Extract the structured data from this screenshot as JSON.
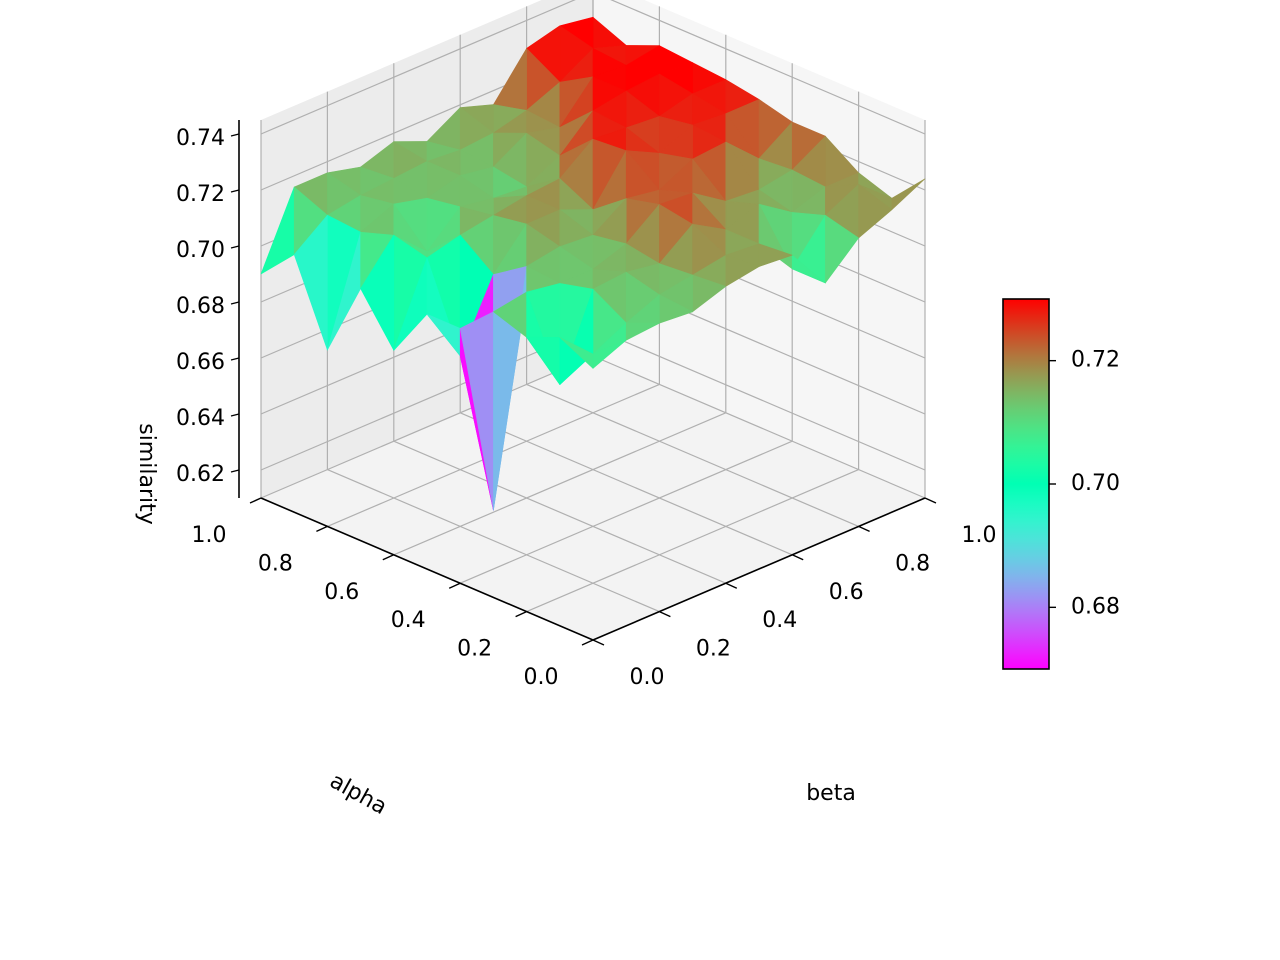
{
  "chart_data": {
    "type": "surface3d",
    "title": "",
    "xlabel": "alpha",
    "ylabel": "beta",
    "zlabel": "similarity",
    "x": [
      0.0,
      0.1,
      0.2,
      0.3,
      0.4,
      0.5,
      0.6,
      0.7,
      0.8,
      0.9,
      1.0
    ],
    "y": [
      0.0,
      0.1,
      0.2,
      0.3,
      0.4,
      0.5,
      0.6,
      0.7,
      0.8,
      0.9,
      1.0
    ],
    "z": [
      [
        0.707,
        0.712,
        0.713,
        0.712,
        0.716,
        0.718,
        0.717,
        0.702,
        0.713,
        0.718,
        0.724
      ],
      [
        0.713,
        0.702,
        0.708,
        0.713,
        0.715,
        0.717,
        0.716,
        0.702,
        0.716,
        0.722,
        0.712
      ],
      [
        0.708,
        0.686,
        0.715,
        0.716,
        0.714,
        0.723,
        0.716,
        0.72,
        0.712,
        0.716,
        0.716
      ],
      [
        0.712,
        0.714,
        0.712,
        0.712,
        0.716,
        0.725,
        0.724,
        0.716,
        0.715,
        0.717,
        0.724
      ],
      [
        0.701,
        0.631,
        0.713,
        0.715,
        0.714,
        0.722,
        0.72,
        0.726,
        0.727,
        0.716,
        0.724
      ],
      [
        0.701,
        0.681,
        0.705,
        0.718,
        0.718,
        0.713,
        0.729,
        0.723,
        0.728,
        0.727,
        0.727
      ],
      [
        0.683,
        0.711,
        0.714,
        0.716,
        0.718,
        0.719,
        0.728,
        0.727,
        0.726,
        0.729,
        0.729
      ],
      [
        0.7,
        0.714,
        0.703,
        0.714,
        0.712,
        0.711,
        0.717,
        0.728,
        0.73,
        0.731,
        0.73
      ],
      [
        0.673,
        0.71,
        0.715,
        0.712,
        0.715,
        0.713,
        0.72,
        0.717,
        0.73,
        0.729,
        0.731
      ],
      [
        0.702,
        0.711,
        0.713,
        0.714,
        0.715,
        0.714,
        0.715,
        0.718,
        0.723,
        0.73,
        0.726
      ],
      [
        0.69,
        0.716,
        0.716,
        0.713,
        0.717,
        0.712,
        0.719,
        0.715,
        0.73,
        0.733,
        0.731
      ]
    ],
    "xticks": [
      "0.0",
      "0.2",
      "0.4",
      "0.6",
      "0.8",
      "1.0"
    ],
    "yticks": [
      "0.0",
      "0.2",
      "0.4",
      "0.6",
      "0.8",
      "1.0"
    ],
    "zticks": [
      "0.62",
      "0.64",
      "0.66",
      "0.68",
      "0.70",
      "0.72",
      "0.74"
    ],
    "zlim": [
      0.61,
      0.745
    ],
    "colorbar": {
      "ticks": [
        "0.68",
        "0.70",
        "0.72"
      ],
      "tick_values": [
        0.68,
        0.7,
        0.72
      ],
      "range": [
        0.67,
        0.73
      ],
      "colormap": "rainbow"
    },
    "grid": true
  }
}
